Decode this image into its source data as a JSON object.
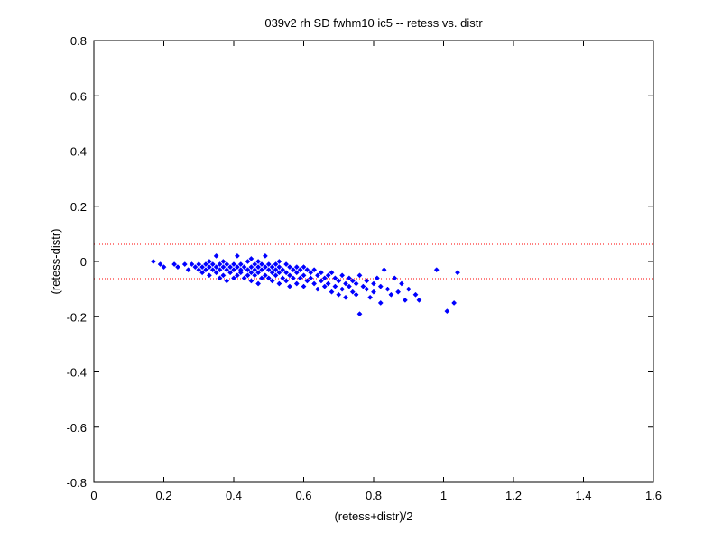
{
  "chart_data": {
    "type": "scatter",
    "title": "039v2 rh SD fwhm10 ic5 -- retess vs. distr",
    "xlabel": "(retess+distr)/2",
    "ylabel": "(retess-distr)",
    "xlim": [
      0,
      1.6
    ],
    "ylim": [
      -0.8,
      0.8
    ],
    "x_ticks": [
      0,
      0.2,
      0.4,
      0.6,
      0.8,
      1,
      1.2,
      1.4,
      1.6
    ],
    "y_ticks": [
      -0.8,
      -0.6,
      -0.4,
      -0.2,
      0,
      0.2,
      0.4,
      0.6,
      0.8
    ],
    "x_tick_labels": [
      "0",
      "0.2",
      "0.4",
      "0.6",
      "0.8",
      "1",
      "1.2",
      "1.4",
      "1.6"
    ],
    "y_tick_labels": [
      "-0.8",
      "-0.6",
      "-0.4",
      "-0.2",
      "0",
      "0.2",
      "0.4",
      "0.6",
      "0.8"
    ],
    "grid": false,
    "reference_lines": [
      {
        "y": 0.062,
        "style": "dotted",
        "color": "#ff0000"
      },
      {
        "y": -0.062,
        "style": "dotted",
        "color": "#ff0000"
      }
    ],
    "series": [
      {
        "marker": "diamond",
        "color": "#0000ff",
        "points": [
          [
            0.17,
            0.0
          ],
          [
            0.19,
            -0.01
          ],
          [
            0.2,
            -0.02
          ],
          [
            0.23,
            -0.01
          ],
          [
            0.24,
            -0.02
          ],
          [
            0.26,
            -0.01
          ],
          [
            0.27,
            -0.03
          ],
          [
            0.28,
            -0.01
          ],
          [
            0.29,
            -0.02
          ],
          [
            0.3,
            -0.01
          ],
          [
            0.3,
            -0.03
          ],
          [
            0.31,
            -0.02
          ],
          [
            0.31,
            -0.04
          ],
          [
            0.32,
            -0.01
          ],
          [
            0.32,
            -0.03
          ],
          [
            0.33,
            0.0
          ],
          [
            0.33,
            -0.02
          ],
          [
            0.33,
            -0.05
          ],
          [
            0.34,
            -0.01
          ],
          [
            0.34,
            -0.03
          ],
          [
            0.35,
            0.02
          ],
          [
            0.35,
            -0.02
          ],
          [
            0.35,
            -0.04
          ],
          [
            0.36,
            -0.01
          ],
          [
            0.36,
            -0.03
          ],
          [
            0.36,
            -0.06
          ],
          [
            0.37,
            0.0
          ],
          [
            0.37,
            -0.02
          ],
          [
            0.37,
            -0.05
          ],
          [
            0.38,
            -0.01
          ],
          [
            0.38,
            -0.03
          ],
          [
            0.38,
            -0.07
          ],
          [
            0.39,
            -0.02
          ],
          [
            0.39,
            -0.04
          ],
          [
            0.4,
            -0.01
          ],
          [
            0.4,
            -0.03
          ],
          [
            0.4,
            -0.06
          ],
          [
            0.41,
            0.02
          ],
          [
            0.41,
            -0.02
          ],
          [
            0.41,
            -0.05
          ],
          [
            0.42,
            -0.01
          ],
          [
            0.42,
            -0.03
          ],
          [
            0.42,
            -0.04
          ],
          [
            0.43,
            -0.02
          ],
          [
            0.43,
            -0.06
          ],
          [
            0.44,
            0.0
          ],
          [
            0.44,
            -0.03
          ],
          [
            0.44,
            -0.05
          ],
          [
            0.45,
            0.01
          ],
          [
            0.45,
            -0.02
          ],
          [
            0.45,
            -0.04
          ],
          [
            0.45,
            -0.07
          ],
          [
            0.46,
            -0.01
          ],
          [
            0.46,
            -0.03
          ],
          [
            0.46,
            -0.05
          ],
          [
            0.47,
            0.0
          ],
          [
            0.47,
            -0.02
          ],
          [
            0.47,
            -0.04
          ],
          [
            0.47,
            -0.08
          ],
          [
            0.48,
            -0.01
          ],
          [
            0.48,
            -0.03
          ],
          [
            0.48,
            -0.06
          ],
          [
            0.49,
            0.02
          ],
          [
            0.49,
            -0.02
          ],
          [
            0.49,
            -0.05
          ],
          [
            0.5,
            -0.01
          ],
          [
            0.5,
            -0.03
          ],
          [
            0.5,
            -0.06
          ],
          [
            0.51,
            -0.02
          ],
          [
            0.51,
            -0.04
          ],
          [
            0.51,
            -0.07
          ],
          [
            0.52,
            -0.01
          ],
          [
            0.52,
            -0.03
          ],
          [
            0.52,
            -0.05
          ],
          [
            0.53,
            0.0
          ],
          [
            0.53,
            -0.02
          ],
          [
            0.53,
            -0.04
          ],
          [
            0.53,
            -0.08
          ],
          [
            0.54,
            -0.03
          ],
          [
            0.54,
            -0.06
          ],
          [
            0.55,
            -0.01
          ],
          [
            0.55,
            -0.04
          ],
          [
            0.55,
            -0.07
          ],
          [
            0.56,
            -0.02
          ],
          [
            0.56,
            -0.05
          ],
          [
            0.56,
            -0.09
          ],
          [
            0.57,
            -0.03
          ],
          [
            0.57,
            -0.06
          ],
          [
            0.58,
            -0.02
          ],
          [
            0.58,
            -0.04
          ],
          [
            0.58,
            -0.08
          ],
          [
            0.59,
            -0.03
          ],
          [
            0.59,
            -0.06
          ],
          [
            0.6,
            -0.02
          ],
          [
            0.6,
            -0.05
          ],
          [
            0.6,
            -0.09
          ],
          [
            0.61,
            -0.03
          ],
          [
            0.61,
            -0.07
          ],
          [
            0.62,
            -0.04
          ],
          [
            0.62,
            -0.06
          ],
          [
            0.63,
            -0.03
          ],
          [
            0.63,
            -0.08
          ],
          [
            0.64,
            -0.05
          ],
          [
            0.64,
            -0.1
          ],
          [
            0.65,
            -0.04
          ],
          [
            0.65,
            -0.07
          ],
          [
            0.66,
            -0.06
          ],
          [
            0.66,
            -0.09
          ],
          [
            0.67,
            -0.05
          ],
          [
            0.67,
            -0.08
          ],
          [
            0.68,
            -0.04
          ],
          [
            0.68,
            -0.11
          ],
          [
            0.69,
            -0.06
          ],
          [
            0.69,
            -0.09
          ],
          [
            0.7,
            -0.07
          ],
          [
            0.7,
            -0.12
          ],
          [
            0.71,
            -0.05
          ],
          [
            0.71,
            -0.1
          ],
          [
            0.72,
            -0.08
          ],
          [
            0.72,
            -0.13
          ],
          [
            0.73,
            -0.06
          ],
          [
            0.73,
            -0.09
          ],
          [
            0.74,
            -0.07
          ],
          [
            0.74,
            -0.11
          ],
          [
            0.75,
            -0.08
          ],
          [
            0.75,
            -0.12
          ],
          [
            0.76,
            -0.05
          ],
          [
            0.76,
            -0.19
          ],
          [
            0.77,
            -0.09
          ],
          [
            0.78,
            -0.07
          ],
          [
            0.78,
            -0.1
          ],
          [
            0.79,
            -0.13
          ],
          [
            0.8,
            -0.08
          ],
          [
            0.8,
            -0.11
          ],
          [
            0.81,
            -0.06
          ],
          [
            0.82,
            -0.09
          ],
          [
            0.82,
            -0.15
          ],
          [
            0.83,
            -0.03
          ],
          [
            0.84,
            -0.1
          ],
          [
            0.85,
            -0.12
          ],
          [
            0.86,
            -0.06
          ],
          [
            0.87,
            -0.11
          ],
          [
            0.88,
            -0.08
          ],
          [
            0.89,
            -0.14
          ],
          [
            0.9,
            -0.1
          ],
          [
            0.92,
            -0.12
          ],
          [
            0.93,
            -0.14
          ],
          [
            0.98,
            -0.03
          ],
          [
            1.01,
            -0.18
          ],
          [
            1.03,
            -0.15
          ],
          [
            1.04,
            -0.04
          ]
        ]
      }
    ]
  }
}
